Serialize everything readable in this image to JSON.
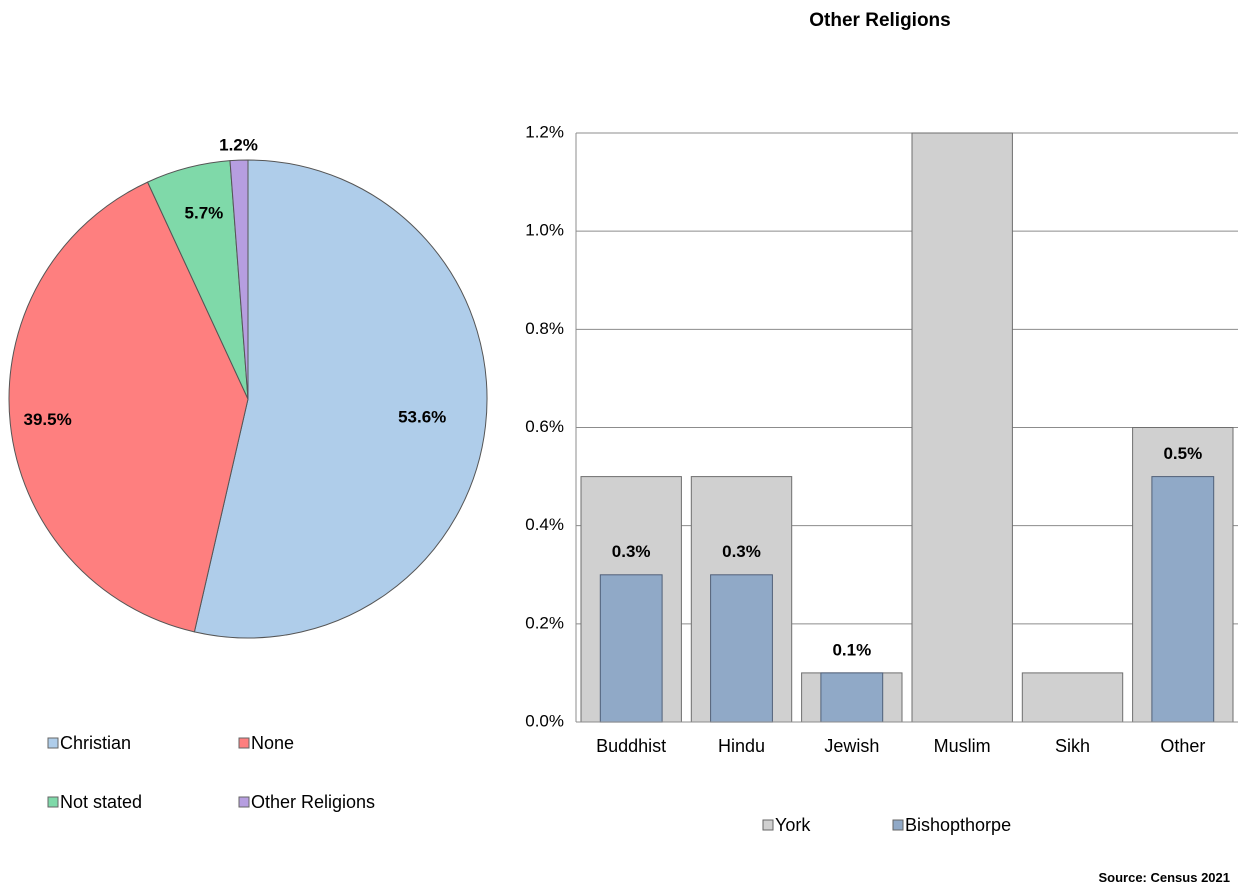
{
  "pie_legend": [
    {
      "label": "Christian",
      "color": "#afcdea"
    },
    {
      "label": "None",
      "color": "#fe7f7f"
    },
    {
      "label": "Not stated",
      "color": "#7fd9a9"
    },
    {
      "label": "Other Religions",
      "color": "#b69ee0"
    }
  ],
  "bar_legend": [
    {
      "label": "York",
      "color": "#d0d0d0"
    },
    {
      "label": "Bishopthorpe",
      "color": "#90a9c7"
    }
  ],
  "source": "Source: Census 2021",
  "chart_data": [
    {
      "type": "pie",
      "title": "",
      "slices": [
        {
          "label": "Christian",
          "value": 53.6,
          "display": "53.6%",
          "color": "#afcdea"
        },
        {
          "label": "None",
          "value": 39.5,
          "display": "39.5%",
          "color": "#fe7f7f"
        },
        {
          "label": "Not stated",
          "value": 5.7,
          "display": "5.7%",
          "color": "#7fd9a9"
        },
        {
          "label": "Other Religions",
          "value": 1.2,
          "display": "1.2%",
          "color": "#b69ee0"
        }
      ],
      "legend_placement": "bottom"
    },
    {
      "type": "bar",
      "title": "Other Religions",
      "categories": [
        "Buddhist",
        "Hindu",
        "Jewish",
        "Muslim",
        "Sikh",
        "Other"
      ],
      "series": [
        {
          "name": "York",
          "values": [
            0.5,
            0.5,
            0.1,
            1.2,
            0.1,
            0.6
          ],
          "color": "#d0d0d0"
        },
        {
          "name": "Bishopthorpe",
          "values": [
            0.3,
            0.3,
            0.1,
            0.0,
            0.0,
            0.5
          ],
          "color": "#90a9c7"
        }
      ],
      "data_labels": [
        "0.3%",
        "0.3%",
        "0.1%",
        "",
        "",
        "0.5%"
      ],
      "yticks": [
        "0.0%",
        "0.2%",
        "0.4%",
        "0.6%",
        "0.8%",
        "1.0%",
        "1.2%"
      ],
      "ylim": [
        0,
        1.2
      ],
      "grid": true,
      "legend_placement": "bottom"
    }
  ]
}
